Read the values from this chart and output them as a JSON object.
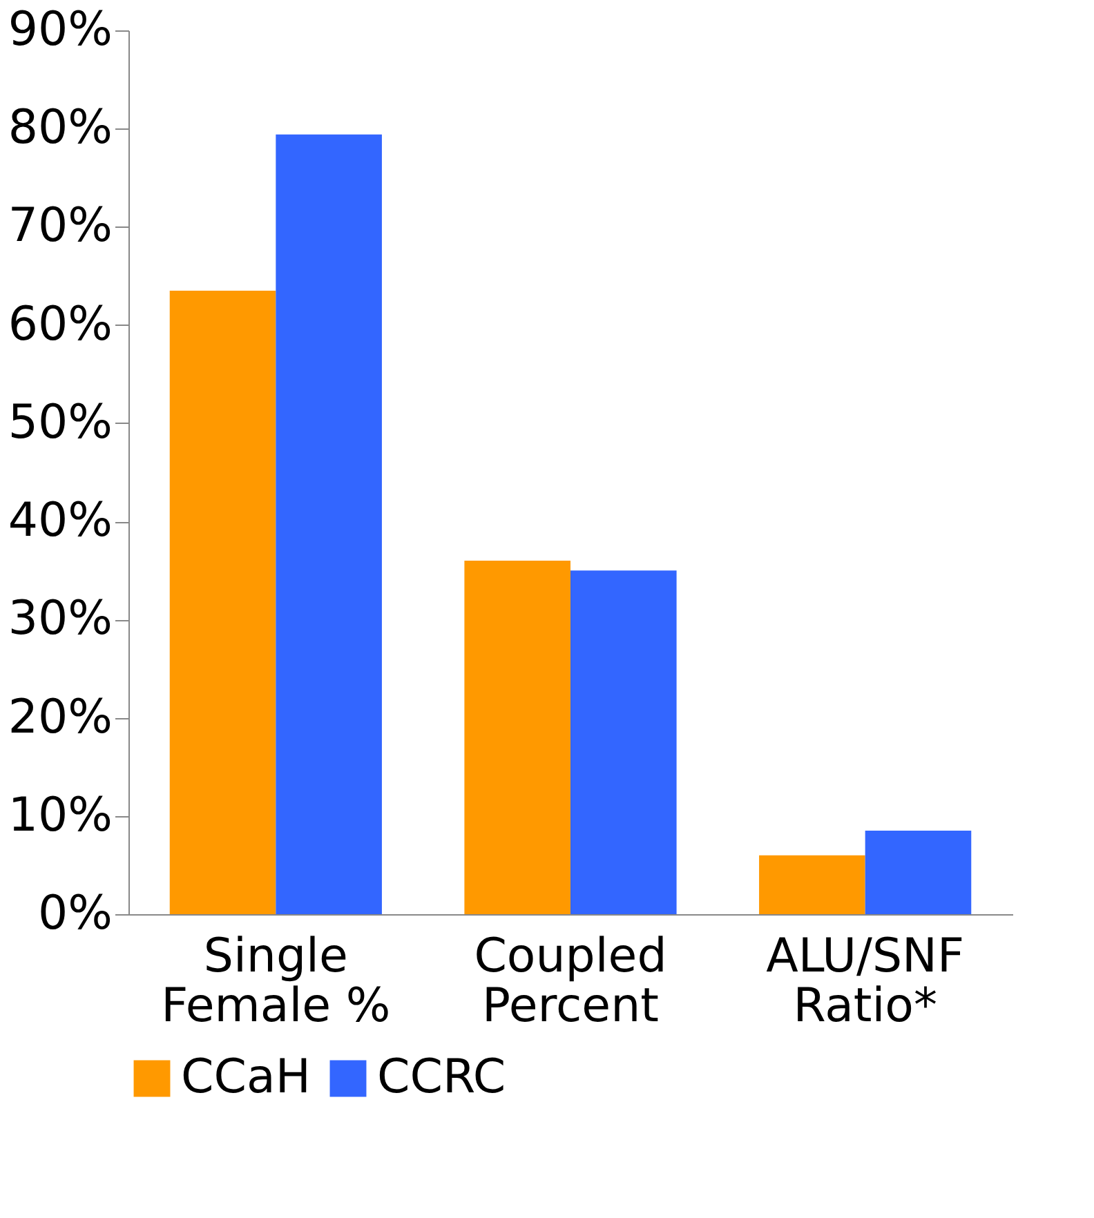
{
  "chart_data": {
    "type": "bar",
    "categories": [
      "Single\nFemale %",
      "Coupled\nPercent",
      "ALU/SNF\nRatio*"
    ],
    "series": [
      {
        "name": "CCaH",
        "color": "#ff9900",
        "values": [
          63.5,
          36,
          6
        ]
      },
      {
        "name": "CCRC",
        "color": "#3366ff",
        "values": [
          79.4,
          35,
          8.5
        ]
      }
    ],
    "ylim": [
      0,
      90
    ],
    "yticks": [
      {
        "value": 0,
        "label": "0%"
      },
      {
        "value": 10,
        "label": "10%"
      },
      {
        "value": 20,
        "label": "20%"
      },
      {
        "value": 30,
        "label": "30%"
      },
      {
        "value": 40,
        "label": "40%"
      },
      {
        "value": 50,
        "label": "50%"
      },
      {
        "value": 60,
        "label": "60%"
      },
      {
        "value": 70,
        "label": "70%"
      },
      {
        "value": 80,
        "label": "80%"
      },
      {
        "value": 90,
        "label": "90%"
      }
    ],
    "grid": false,
    "legend": "bottom"
  }
}
